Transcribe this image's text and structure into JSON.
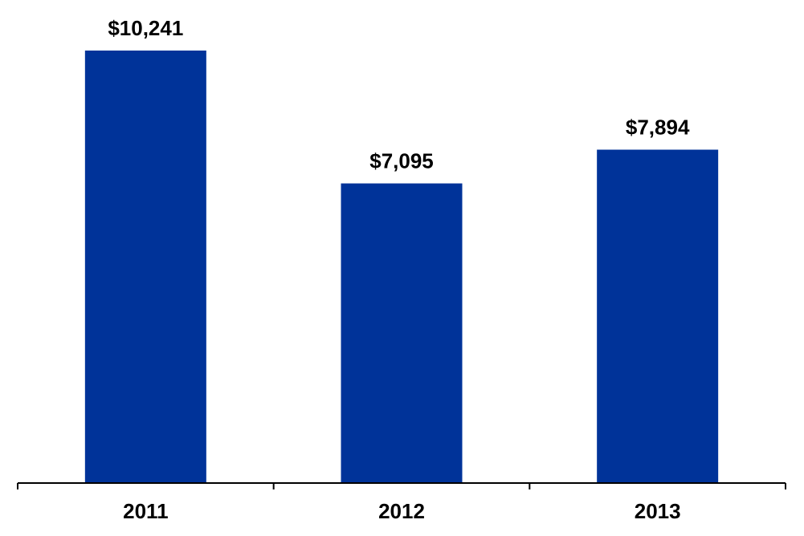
{
  "chart_data": {
    "type": "bar",
    "categories": [
      "2011",
      "2012",
      "2013"
    ],
    "values": [
      10241,
      7095,
      7894
    ],
    "data_labels": [
      "$10,241",
      "$7,095",
      "$7,894"
    ],
    "title": "",
    "xlabel": "",
    "ylabel": "",
    "ylim": [
      0,
      12000
    ],
    "grid": false,
    "legend": "none",
    "bar_color": "#003399",
    "axis_color": "#000000"
  }
}
